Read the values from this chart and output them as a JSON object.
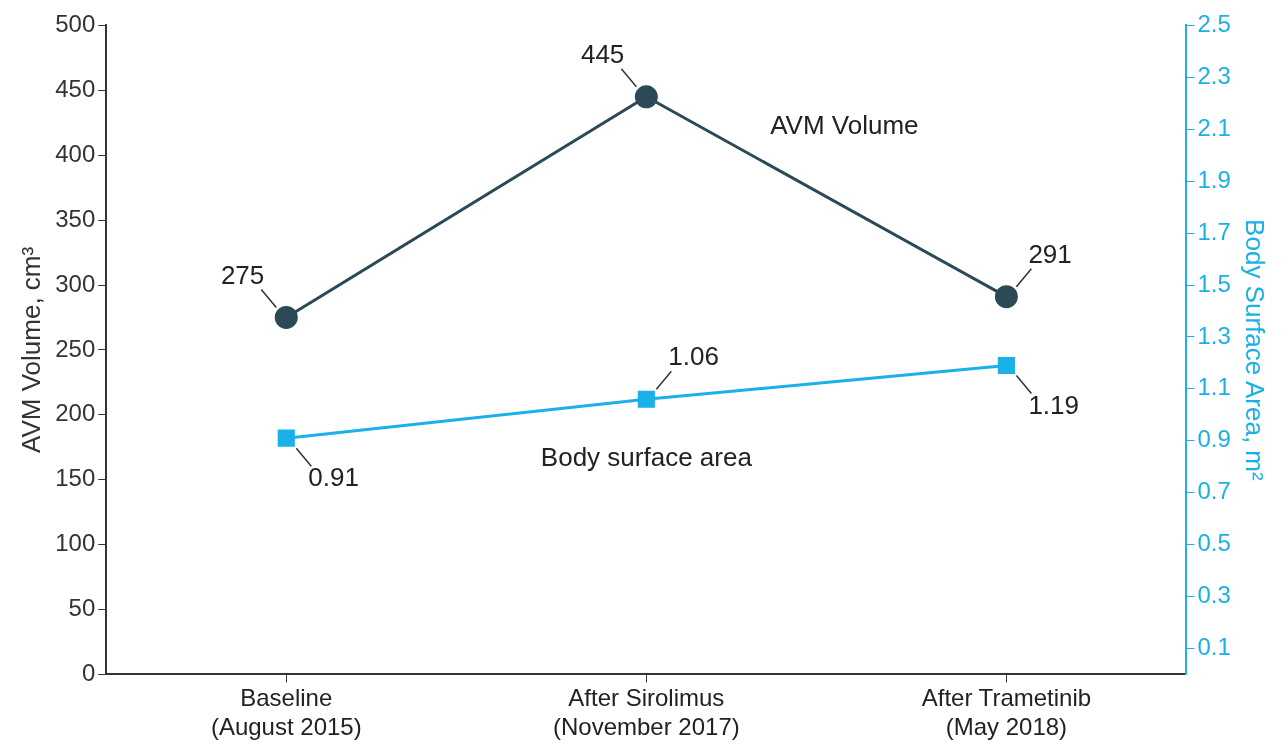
{
  "chart_data": {
    "type": "line",
    "ylabel": "AVM Volume, cm³",
    "y2label": "Body Surface Area, m²",
    "categories": [
      "Baseline\n(August 2015)",
      "After Sirolimus\n(November 2017)",
      "After Trametinib\n(May 2018)"
    ],
    "series": [
      {
        "name": "AVM Volume",
        "color": "#2b4a56",
        "values": [
          275,
          445,
          291
        ],
        "marker": "circle"
      },
      {
        "name": "Body surface area",
        "color": "#1ab0e8",
        "values": [
          0.91,
          1.06,
          1.19
        ],
        "axis": "y2",
        "marker": "square"
      }
    ],
    "ylim": [
      0,
      500
    ],
    "yticks": [
      0,
      50,
      100,
      150,
      200,
      250,
      300,
      350,
      400,
      450,
      500
    ],
    "y2lim": [
      0,
      2.5
    ],
    "y2ticks": [
      0.1,
      0.3,
      0.5,
      0.7,
      0.9,
      1.1,
      1.3,
      1.5,
      1.7,
      1.9,
      2.1,
      2.3,
      2.5
    ],
    "data_labels": true,
    "grid": false,
    "legend": false
  }
}
